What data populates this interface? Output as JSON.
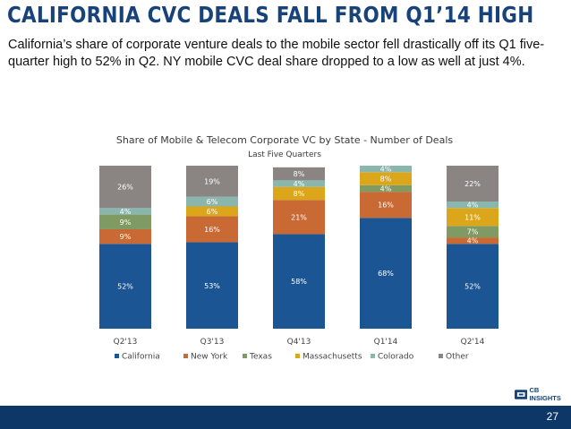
{
  "slide": {
    "title": "CALIFORNIA CVC DEALS FALL FROM Q1’14 HIGH",
    "subtitle": "California’s share of corporate venture deals to the mobile sector fell drastically off its Q1 five-quarter high to 52% in Q2. NY mobile CVC deal share dropped to a low as well at just 4%.",
    "page_number": "27",
    "logo": {
      "icon": "cb-logo-icon",
      "text": "CB INSIGHTS"
    }
  },
  "chart_data": {
    "type": "bar",
    "stacked": true,
    "percent": true,
    "title": "Share of Mobile & Telecom Corporate VC by State - Number of Deals",
    "subtitle": "Last Five Quarters",
    "xlabel": "",
    "ylabel": "",
    "ylim": [
      0,
      100
    ],
    "grid": false,
    "legend_position": "bottom",
    "categories": [
      "Q2'13",
      "Q3'13",
      "Q4'13",
      "Q1'14",
      "Q2'14"
    ],
    "series": [
      {
        "name": "California",
        "color": "#1b5594",
        "values": [
          52,
          53,
          58,
          68,
          52
        ],
        "labels": [
          "52%",
          "53%",
          "58%",
          "68%",
          "52%"
        ]
      },
      {
        "name": "New York",
        "color": "#c96a35",
        "values": [
          9,
          16,
          21,
          16,
          4
        ],
        "labels": [
          "9%",
          "16%",
          "21%",
          "16%",
          "4%"
        ]
      },
      {
        "name": "Texas",
        "color": "#7f9a62",
        "values": [
          9,
          0,
          0,
          4,
          7
        ],
        "labels": [
          "9%",
          "",
          "",
          "4%",
          "7%"
        ]
      },
      {
        "name": "Massachusetts",
        "color": "#dba61a",
        "values": [
          0,
          6,
          8,
          8,
          11
        ],
        "labels": [
          "",
          "6%",
          "8%",
          "8%",
          "11%"
        ]
      },
      {
        "name": "Colorado",
        "color": "#8ab6ad",
        "values": [
          4,
          6,
          4,
          4,
          4
        ],
        "labels": [
          "4%",
          "6%",
          "4%",
          "4%",
          "4%"
        ]
      },
      {
        "name": "Other",
        "color": "#8a8582",
        "values": [
          26,
          19,
          8,
          0,
          22
        ],
        "labels": [
          "26%",
          "19%",
          "8%",
          "",
          "22%"
        ]
      }
    ]
  }
}
